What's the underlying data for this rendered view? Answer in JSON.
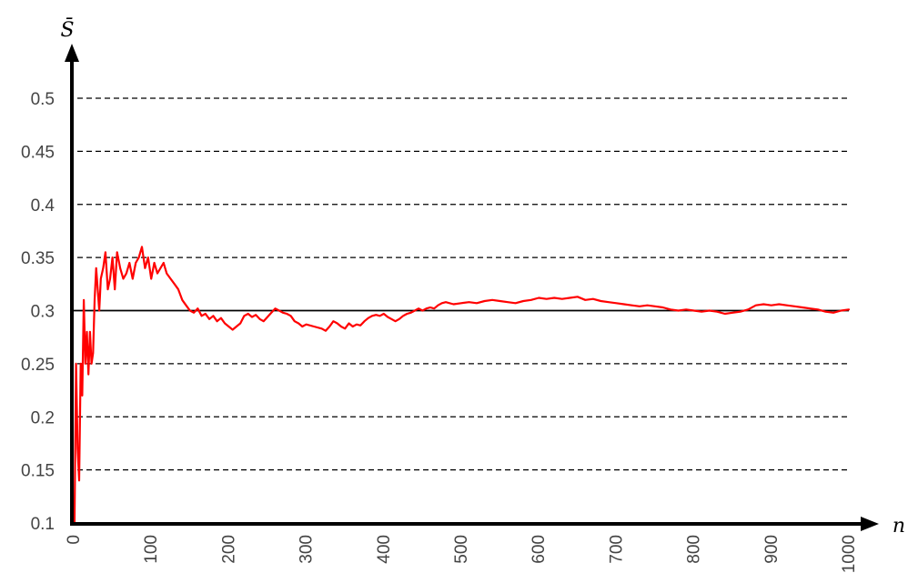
{
  "chart_data": {
    "type": "line",
    "title": "",
    "xlabel": "n",
    "ylabel": "S̄",
    "xlim": [
      0,
      1000
    ],
    "ylim": [
      0.1,
      0.5
    ],
    "x_ticks": [
      "0",
      "100",
      "200",
      "300",
      "400",
      "500",
      "600",
      "700",
      "800",
      "900",
      "1000"
    ],
    "y_ticks": [
      "0.1",
      "0.15",
      "0.2",
      "0.25",
      "0.3",
      "0.35",
      "0.4",
      "0.45",
      "0.5"
    ],
    "gridlines": {
      "style": "dashed",
      "values": [
        0.15,
        0.2,
        0.25,
        0.35,
        0.4,
        0.45,
        0.5
      ]
    },
    "reference_line": {
      "value": 0.3,
      "color": "#000000"
    },
    "series": [
      {
        "color": "#ff0000",
        "points": [
          [
            1,
            0.1
          ],
          [
            3,
            0.25
          ],
          [
            5,
            0.17
          ],
          [
            7,
            0.14
          ],
          [
            9,
            0.25
          ],
          [
            11,
            0.22
          ],
          [
            13,
            0.31
          ],
          [
            15,
            0.25
          ],
          [
            17,
            0.28
          ],
          [
            19,
            0.24
          ],
          [
            21,
            0.28
          ],
          [
            23,
            0.25
          ],
          [
            25,
            0.26
          ],
          [
            27,
            0.31
          ],
          [
            29,
            0.34
          ],
          [
            31,
            0.32
          ],
          [
            33,
            0.3
          ],
          [
            35,
            0.33
          ],
          [
            38,
            0.34
          ],
          [
            41,
            0.355
          ],
          [
            44,
            0.32
          ],
          [
            47,
            0.33
          ],
          [
            50,
            0.35
          ],
          [
            53,
            0.32
          ],
          [
            56,
            0.355
          ],
          [
            60,
            0.34
          ],
          [
            64,
            0.33
          ],
          [
            68,
            0.335
          ],
          [
            72,
            0.345
          ],
          [
            76,
            0.33
          ],
          [
            80,
            0.345
          ],
          [
            84,
            0.35
          ],
          [
            88,
            0.36
          ],
          [
            92,
            0.34
          ],
          [
            96,
            0.35
          ],
          [
            100,
            0.33
          ],
          [
            104,
            0.345
          ],
          [
            108,
            0.335
          ],
          [
            112,
            0.34
          ],
          [
            116,
            0.345
          ],
          [
            120,
            0.335
          ],
          [
            125,
            0.33
          ],
          [
            130,
            0.325
          ],
          [
            135,
            0.32
          ],
          [
            140,
            0.31
          ],
          [
            145,
            0.305
          ],
          [
            150,
            0.3
          ],
          [
            155,
            0.298
          ],
          [
            160,
            0.302
          ],
          [
            165,
            0.295
          ],
          [
            170,
            0.297
          ],
          [
            175,
            0.292
          ],
          [
            180,
            0.295
          ],
          [
            185,
            0.29
          ],
          [
            190,
            0.293
          ],
          [
            195,
            0.288
          ],
          [
            200,
            0.285
          ],
          [
            205,
            0.282
          ],
          [
            210,
            0.285
          ],
          [
            215,
            0.288
          ],
          [
            220,
            0.295
          ],
          [
            225,
            0.297
          ],
          [
            230,
            0.294
          ],
          [
            235,
            0.296
          ],
          [
            240,
            0.292
          ],
          [
            245,
            0.29
          ],
          [
            250,
            0.294
          ],
          [
            255,
            0.298
          ],
          [
            260,
            0.302
          ],
          [
            265,
            0.3
          ],
          [
            270,
            0.298
          ],
          [
            275,
            0.297
          ],
          [
            280,
            0.295
          ],
          [
            285,
            0.29
          ],
          [
            290,
            0.288
          ],
          [
            295,
            0.285
          ],
          [
            300,
            0.287
          ],
          [
            310,
            0.285
          ],
          [
            320,
            0.283
          ],
          [
            325,
            0.281
          ],
          [
            330,
            0.285
          ],
          [
            335,
            0.29
          ],
          [
            340,
            0.288
          ],
          [
            345,
            0.285
          ],
          [
            350,
            0.283
          ],
          [
            355,
            0.288
          ],
          [
            360,
            0.285
          ],
          [
            365,
            0.287
          ],
          [
            370,
            0.286
          ],
          [
            375,
            0.29
          ],
          [
            380,
            0.293
          ],
          [
            385,
            0.295
          ],
          [
            390,
            0.296
          ],
          [
            395,
            0.295
          ],
          [
            400,
            0.297
          ],
          [
            405,
            0.294
          ],
          [
            410,
            0.292
          ],
          [
            415,
            0.29
          ],
          [
            420,
            0.292
          ],
          [
            425,
            0.295
          ],
          [
            430,
            0.297
          ],
          [
            435,
            0.298
          ],
          [
            440,
            0.3
          ],
          [
            445,
            0.302
          ],
          [
            450,
            0.3
          ],
          [
            455,
            0.302
          ],
          [
            460,
            0.303
          ],
          [
            465,
            0.302
          ],
          [
            470,
            0.305
          ],
          [
            475,
            0.307
          ],
          [
            480,
            0.308
          ],
          [
            490,
            0.306
          ],
          [
            500,
            0.307
          ],
          [
            510,
            0.308
          ],
          [
            520,
            0.307
          ],
          [
            530,
            0.309
          ],
          [
            540,
            0.31
          ],
          [
            550,
            0.309
          ],
          [
            560,
            0.308
          ],
          [
            570,
            0.307
          ],
          [
            580,
            0.309
          ],
          [
            590,
            0.31
          ],
          [
            600,
            0.312
          ],
          [
            610,
            0.311
          ],
          [
            620,
            0.312
          ],
          [
            630,
            0.311
          ],
          [
            640,
            0.312
          ],
          [
            650,
            0.313
          ],
          [
            660,
            0.31
          ],
          [
            670,
            0.311
          ],
          [
            680,
            0.309
          ],
          [
            690,
            0.308
          ],
          [
            700,
            0.307
          ],
          [
            710,
            0.306
          ],
          [
            720,
            0.305
          ],
          [
            730,
            0.304
          ],
          [
            740,
            0.305
          ],
          [
            750,
            0.304
          ],
          [
            760,
            0.303
          ],
          [
            770,
            0.301
          ],
          [
            780,
            0.3
          ],
          [
            790,
            0.301
          ],
          [
            800,
            0.3
          ],
          [
            810,
            0.299
          ],
          [
            820,
            0.3
          ],
          [
            830,
            0.299
          ],
          [
            840,
            0.297
          ],
          [
            850,
            0.298
          ],
          [
            860,
            0.299
          ],
          [
            870,
            0.301
          ],
          [
            880,
            0.305
          ],
          [
            890,
            0.306
          ],
          [
            900,
            0.305
          ],
          [
            910,
            0.306
          ],
          [
            920,
            0.305
          ],
          [
            930,
            0.304
          ],
          [
            940,
            0.303
          ],
          [
            950,
            0.302
          ],
          [
            960,
            0.301
          ],
          [
            970,
            0.299
          ],
          [
            980,
            0.298
          ],
          [
            990,
            0.3
          ],
          [
            1000,
            0.301
          ]
        ]
      }
    ]
  }
}
